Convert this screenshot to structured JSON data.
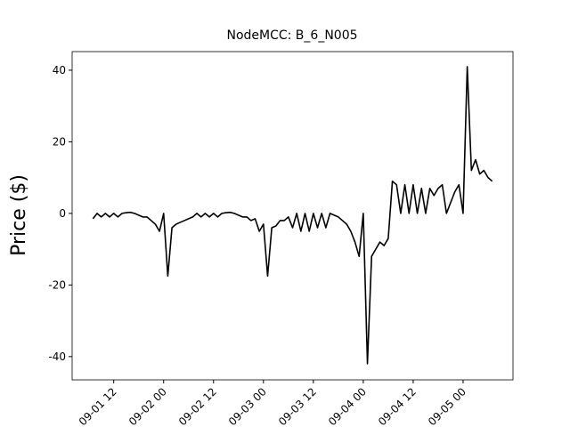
{
  "chart_data": {
    "type": "line",
    "title": "NodeMCC: B_6_N005",
    "y_label": "Price ($)",
    "color": "#000000",
    "x": [
      "09-01 07",
      "09-01 08",
      "09-01 09",
      "09-01 10",
      "09-01 11",
      "09-01 12",
      "09-01 13",
      "09-01 14",
      "09-01 15",
      "09-01 16",
      "09-01 17",
      "09-01 18",
      "09-01 19",
      "09-01 20",
      "09-01 21",
      "09-01 22",
      "09-01 23",
      "09-02 00",
      "09-02 01",
      "09-02 02",
      "09-02 03",
      "09-02 04",
      "09-02 05",
      "09-02 06",
      "09-02 07",
      "09-02 08",
      "09-02 09",
      "09-02 10",
      "09-02 11",
      "09-02 12",
      "09-02 13",
      "09-02 14",
      "09-02 15",
      "09-02 16",
      "09-02 17",
      "09-02 18",
      "09-02 19",
      "09-02 20",
      "09-02 21",
      "09-02 22",
      "09-02 23",
      "09-03 00",
      "09-03 01",
      "09-03 02",
      "09-03 03",
      "09-03 04",
      "09-03 05",
      "09-03 06",
      "09-03 07",
      "09-03 08",
      "09-03 09",
      "09-03 10",
      "09-03 11",
      "09-03 12",
      "09-03 13",
      "09-03 14",
      "09-03 15",
      "09-03 16",
      "09-03 17",
      "09-03 18",
      "09-03 19",
      "09-03 20",
      "09-03 21",
      "09-03 22",
      "09-03 23",
      "09-04 00",
      "09-04 01",
      "09-04 02",
      "09-04 03",
      "09-04 04",
      "09-04 05",
      "09-04 06",
      "09-04 07",
      "09-04 08",
      "09-04 09",
      "09-04 10",
      "09-04 11",
      "09-04 12",
      "09-04 13",
      "09-04 14",
      "09-04 15",
      "09-04 16",
      "09-04 17",
      "09-04 18",
      "09-04 19",
      "09-04 20",
      "09-04 21",
      "09-04 22",
      "09-04 23",
      "09-05 00",
      "09-05 01",
      "09-05 02",
      "09-05 03",
      "09-05 04",
      "09-05 05",
      "09-05 06",
      "09-05 07"
    ],
    "values": [
      -1.5,
      0,
      -1,
      0,
      -1,
      0,
      -1,
      0,
      0.2,
      0.3,
      0,
      -0.5,
      -1,
      -1,
      -2,
      -3,
      -5,
      0,
      -17.5,
      -4,
      -3,
      -2.5,
      -2,
      -1.5,
      -1,
      0,
      -1,
      0,
      -1,
      0,
      -1,
      0,
      0.2,
      0.3,
      0,
      -0.5,
      -1,
      -1,
      -2,
      -1.5,
      -5,
      -3,
      -17.5,
      -4,
      -3.5,
      -2,
      -2,
      -1,
      -4,
      0,
      -5,
      0,
      -5,
      0,
      -4,
      0,
      -4,
      0,
      -0.5,
      -1,
      -2,
      -3,
      -5,
      -8,
      -12,
      0,
      -42,
      -12,
      -10,
      -8,
      -9,
      -7,
      9,
      8,
      0,
      8,
      0,
      8,
      0,
      7,
      0,
      7,
      5,
      7,
      8,
      0,
      3,
      6,
      8,
      0,
      41,
      12,
      15,
      11,
      12,
      10,
      9
    ],
    "xlim": [
      "09-01 02",
      "09-05 12"
    ],
    "xticks": [
      "09-01 12",
      "09-02 00",
      "09-02 12",
      "09-03 00",
      "09-03 12",
      "09-04 00",
      "09-04 12",
      "09-05 00"
    ],
    "ylim": [
      -46.5,
      45.2
    ],
    "yticks": [
      -40,
      -20,
      0,
      20,
      40
    ]
  }
}
